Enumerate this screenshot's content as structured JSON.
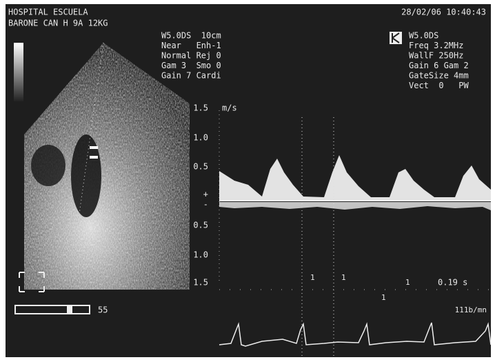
{
  "header": {
    "institution": "HOSPITAL ESCUELA",
    "patient": "BARONE CAN H 9A 12KG",
    "datetime": "28/02/06 10:40:43"
  },
  "imaging_settings": [
    "W5.0DS  10cm",
    "Near   Enh-1",
    "Normal Rej 0",
    "Gam 3  Smo 0",
    "Gain 7 Cardi"
  ],
  "doppler_settings": [
    "W5.0DS",
    "Freq 3.2MHz",
    "WallF 250Hz",
    "Gain 6 Gam 2",
    "GateSize 4mm",
    "Vect  0   PW"
  ],
  "velocity_scale": {
    "unit": "m/s",
    "labels": [
      "1.5",
      "1.0",
      "0.5",
      "+",
      "-",
      "0.5",
      "1.0",
      "1.5"
    ]
  },
  "depth_bar": {
    "label": "55"
  },
  "markers": [
    "1",
    "1",
    "1",
    "1"
  ],
  "measurement": "0.19 s",
  "heart_rate": "111b/mn"
}
